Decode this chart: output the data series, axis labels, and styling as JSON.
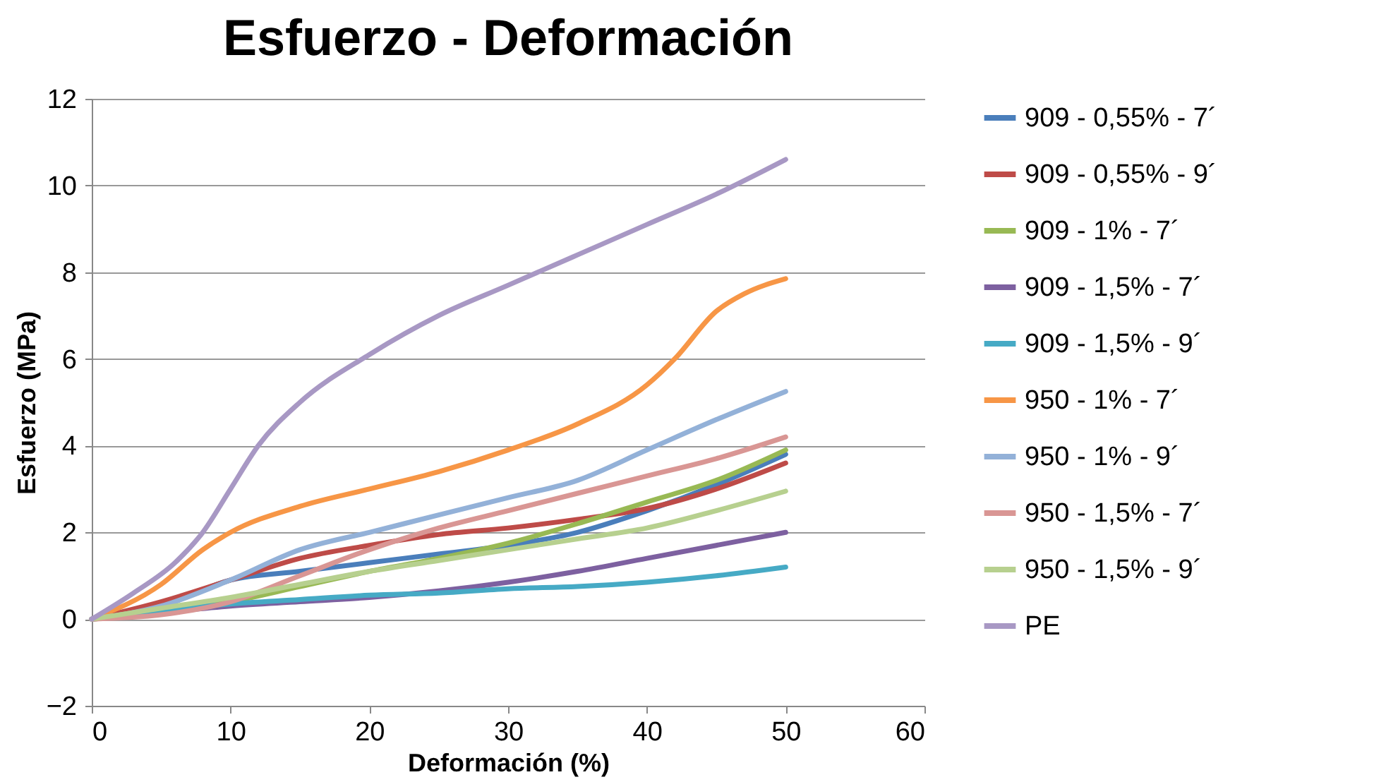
{
  "chart_data": {
    "type": "line",
    "title": "Esfuerzo - Deformación",
    "xlabel": "Deformación (%)",
    "ylabel": "Esfuerzo (MPa)",
    "x": [
      0,
      5,
      10,
      15,
      20,
      25,
      30,
      35,
      40,
      45,
      50
    ],
    "xlim": [
      0,
      60
    ],
    "xticks": [
      0,
      10,
      20,
      30,
      40,
      50,
      60
    ],
    "ylim": [
      -2,
      12
    ],
    "yticks": [
      -2,
      0,
      2,
      4,
      6,
      8,
      10,
      12
    ],
    "grid": "y",
    "legend": "right",
    "marker": "none",
    "line_style": "solid",
    "series": [
      {
        "name": "909 - 0,55% - 7´",
        "color": "#4a7ebb",
        "values": [
          0,
          0.3,
          0.9,
          1.1,
          1.3,
          1.5,
          1.7,
          2.0,
          2.5,
          3.1,
          3.8
        ]
      },
      {
        "name": "909 - 0,55% - 9´",
        "color": "#be4b48",
        "values": [
          0,
          0.4,
          0.9,
          1.4,
          1.7,
          1.95,
          2.1,
          2.3,
          2.55,
          3.0,
          3.6
        ]
      },
      {
        "name": "909 - 1% - 7´",
        "color": "#98b954",
        "values": [
          0,
          0.15,
          0.4,
          0.75,
          1.1,
          1.4,
          1.75,
          2.2,
          2.7,
          3.2,
          3.9
        ]
      },
      {
        "name": "909 - 1,5% - 7´",
        "color": "#7d60a0",
        "values": [
          0,
          0.15,
          0.3,
          0.4,
          0.5,
          0.65,
          0.85,
          1.1,
          1.4,
          1.7,
          2.0
        ]
      },
      {
        "name": "909 - 1,5% - 9´",
        "color": "#46aac5",
        "values": [
          0,
          0.2,
          0.35,
          0.45,
          0.55,
          0.6,
          0.7,
          0.75,
          0.85,
          1.0,
          1.2
        ]
      },
      {
        "name": "950 - 1% - 7´",
        "color": "#f79646",
        "x": [
          0,
          5,
          8,
          10,
          15,
          20,
          25,
          30,
          35,
          40,
          42,
          45,
          47,
          50
        ],
        "values": [
          0,
          0.8,
          1.6,
          2.0,
          2.6,
          3.0,
          3.4,
          3.9,
          4.5,
          5.4,
          6.0,
          7.1,
          7.5,
          7.85
        ]
      },
      {
        "name": "950 - 1% - 9´",
        "color": "#93b1d8",
        "values": [
          0,
          0.3,
          0.9,
          1.6,
          2.0,
          2.4,
          2.8,
          3.2,
          3.9,
          4.6,
          5.25
        ]
      },
      {
        "name": "950 - 1,5% - 7´",
        "color": "#d99694",
        "values": [
          0,
          0.1,
          0.4,
          1.0,
          1.6,
          2.1,
          2.5,
          2.9,
          3.3,
          3.7,
          4.2
        ]
      },
      {
        "name": "950 - 1,5% - 9´",
        "color": "#b7d08f",
        "values": [
          0,
          0.25,
          0.5,
          0.8,
          1.1,
          1.35,
          1.6,
          1.85,
          2.1,
          2.5,
          2.95
        ]
      },
      {
        "name": "PE",
        "color": "#a898c4",
        "x": [
          0,
          3,
          6,
          8,
          10,
          12,
          15,
          20,
          25,
          30,
          35,
          40,
          45,
          50
        ],
        "values": [
          0,
          0.6,
          1.3,
          2.0,
          3.0,
          4.0,
          5.0,
          6.1,
          7.0,
          7.7,
          8.4,
          9.1,
          9.8,
          10.6
        ]
      }
    ]
  }
}
